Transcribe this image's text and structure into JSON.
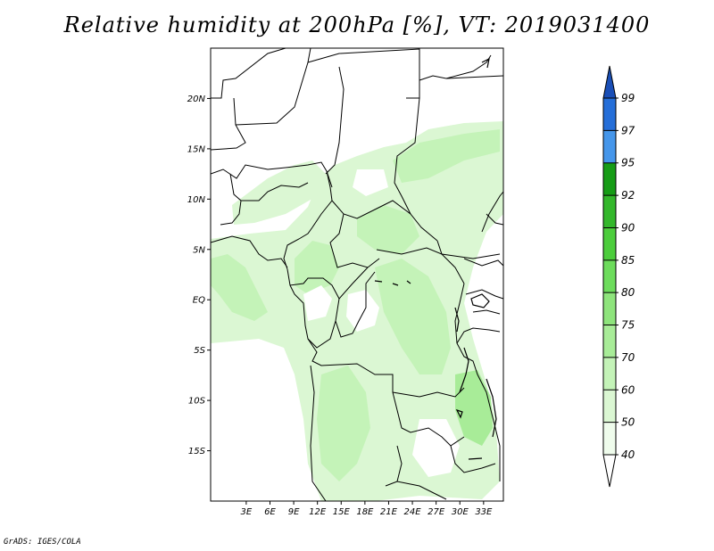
{
  "title": "Relative humidity at 200hPa [%], VT: 2019031400",
  "credit": "GrADS: IGES/COLA",
  "map": {
    "lon_range": [
      -1.5,
      35.5
    ],
    "lat_range": [
      -20,
      25
    ],
    "lat_ticks": [
      {
        "value": 20,
        "label": "20N"
      },
      {
        "value": 15,
        "label": "15N"
      },
      {
        "value": 10,
        "label": "10N"
      },
      {
        "value": 5,
        "label": "5N"
      },
      {
        "value": 0,
        "label": "EQ"
      },
      {
        "value": -5,
        "label": "5S"
      },
      {
        "value": -10,
        "label": "10S"
      },
      {
        "value": -15,
        "label": "15S"
      }
    ],
    "lon_ticks": [
      {
        "value": 3,
        "label": "3E"
      },
      {
        "value": 6,
        "label": "6E"
      },
      {
        "value": 9,
        "label": "9E"
      },
      {
        "value": 12,
        "label": "12E"
      },
      {
        "value": 15,
        "label": "15E"
      },
      {
        "value": 18,
        "label": "18E"
      },
      {
        "value": 21,
        "label": "21E"
      },
      {
        "value": 24,
        "label": "24E"
      },
      {
        "value": 27,
        "label": "27E"
      },
      {
        "value": 30,
        "label": "30E"
      },
      {
        "value": 33,
        "label": "33E"
      }
    ]
  },
  "colorbar": {
    "levels": [
      {
        "label": "40",
        "color": "#effcec"
      },
      {
        "label": "50",
        "color": "#dbf7d3"
      },
      {
        "label": "60",
        "color": "#c4f3b8"
      },
      {
        "label": "70",
        "color": "#a8ec98"
      },
      {
        "label": "75",
        "color": "#8ee47c"
      },
      {
        "label": "80",
        "color": "#6ddc5c"
      },
      {
        "label": "85",
        "color": "#4ccd3c"
      },
      {
        "label": "90",
        "color": "#33b72b"
      },
      {
        "label": "92",
        "color": "#169c16"
      },
      {
        "label": "95",
        "color": "#4596ea"
      },
      {
        "label": "97",
        "color": "#256ed8"
      },
      {
        "label": "99",
        "color": "#1a4fb7"
      }
    ],
    "bottom_color": "#ffffff",
    "top_color": "#1a4fb7"
  }
}
